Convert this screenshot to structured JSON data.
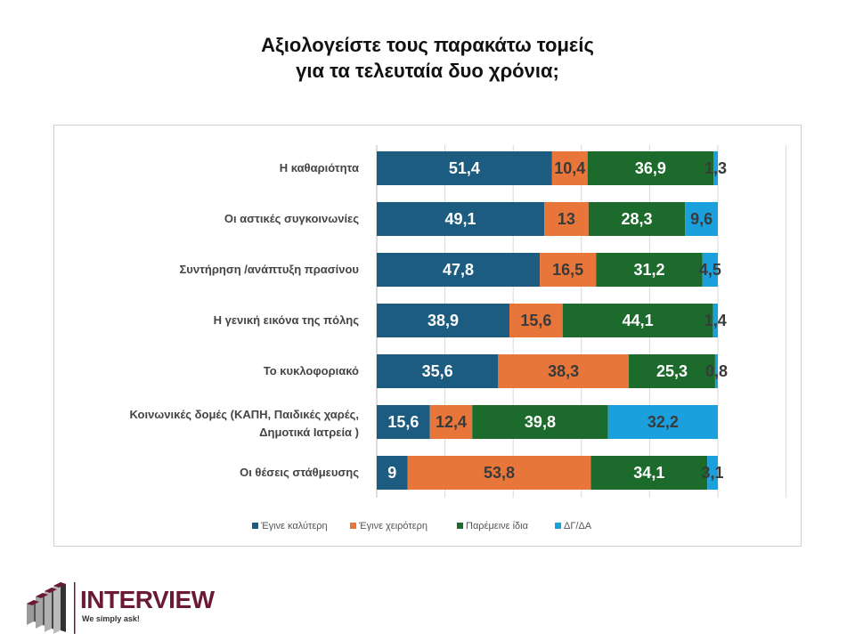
{
  "title_lines": [
    "Αξιολογείστε τους παρακάτω τομείς",
    "για τα τελευταία δυο χρόνια;"
  ],
  "chart_data": {
    "type": "bar",
    "orientation": "horizontal",
    "stacked": true,
    "title": "Αξιολογείστε τους παρακάτω τομείς για τα τελευταία δυο χρόνια;",
    "categories": [
      [
        "Η καθαριότητα"
      ],
      [
        "Οι αστικές συγκοινωνίες"
      ],
      [
        "Συντήρηση /ανάπτυξη πρασίνου"
      ],
      [
        "Η γενική εικόνα της πόλης"
      ],
      [
        "Το κυκλοφοριακό"
      ],
      [
        "Κοινωνικές δομές (ΚΑΠΗ, Παιδικές χαρές,",
        "Δημοτικά Ιατρεία )"
      ],
      [
        "Οι θέσεις στάθμευσης"
      ]
    ],
    "series": [
      {
        "name": "Έγινε καλύτερη",
        "color": "#1b5c80",
        "label_color": "#ffffff",
        "values": [
          51.4,
          49.1,
          47.8,
          38.9,
          35.6,
          15.6,
          9
        ]
      },
      {
        "name": "Έγινε χειρότερη",
        "color": "#e8763a",
        "label_color": "#3a3a3a",
        "values": [
          10.4,
          13,
          16.5,
          15.6,
          38.3,
          12.4,
          53.8
        ]
      },
      {
        "name": "Παρέμεινε ίδια",
        "color": "#1c6b2c",
        "label_color": "#ffffff",
        "values": [
          36.9,
          28.3,
          31.2,
          44.1,
          25.3,
          39.8,
          34.1
        ]
      },
      {
        "name": "ΔΓ/ΔΑ",
        "color": "#1aa0dc",
        "label_color": "#3a3a3a",
        "values": [
          1.3,
          9.6,
          4.5,
          1.4,
          0.8,
          32.2,
          3.1
        ]
      }
    ],
    "xlim": [
      0,
      120
    ],
    "grid": true,
    "legend_position": "bottom",
    "decimal_separator": ","
  },
  "logo": {
    "name": "INTERVIEW",
    "tagline": "We simply ask!"
  }
}
